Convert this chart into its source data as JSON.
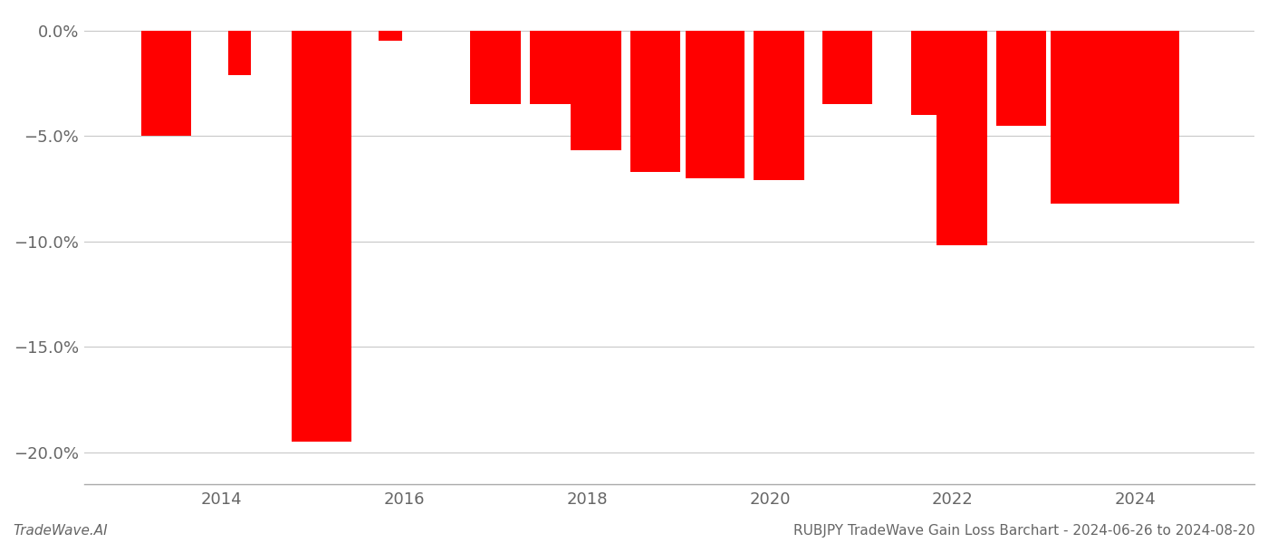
{
  "bar_positions": [
    2013.4,
    2014.2,
    2015.1,
    2015.85,
    2017.0,
    2017.65,
    2018.1,
    2018.75,
    2019.4,
    2020.1,
    2020.85,
    2021.7,
    2022.1,
    2022.75,
    2023.4,
    2024.1
  ],
  "bar_values": [
    -5.0,
    -2.1,
    -19.5,
    -0.5,
    -3.5,
    -3.5,
    -5.7,
    -6.7,
    -7.0,
    -7.1,
    -3.5,
    -4.0,
    -10.2,
    -4.5,
    -8.2,
    -8.2
  ],
  "bar_widths": [
    0.55,
    0.25,
    0.65,
    0.25,
    0.55,
    0.55,
    0.55,
    0.55,
    0.65,
    0.55,
    0.55,
    0.3,
    0.55,
    0.55,
    0.65,
    0.75
  ],
  "bar_color": "#ff0000",
  "background_color": "#ffffff",
  "ylim": [
    -21.5,
    0.8
  ],
  "yticks": [
    0.0,
    -5.0,
    -10.0,
    -15.0,
    -20.0
  ],
  "grid_color": "#c8c8c8",
  "xticks": [
    2014,
    2016,
    2018,
    2020,
    2022,
    2024
  ],
  "xlim": [
    2012.5,
    2025.3
  ],
  "footer_left": "TradeWave.AI",
  "footer_right": "RUBJPY TradeWave Gain Loss Barchart - 2024-06-26 to 2024-08-20",
  "tick_fontsize": 13,
  "footer_fontsize": 11
}
